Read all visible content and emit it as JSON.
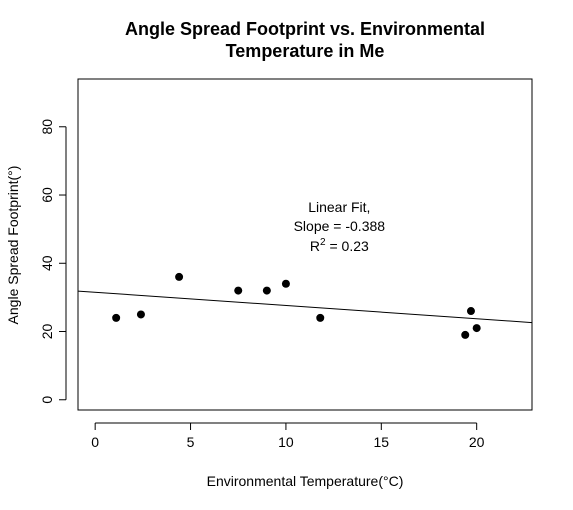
{
  "chart_data": {
    "type": "scatter",
    "title_lines": [
      "Angle Spread Footprint vs. Environmental",
      "Temperature in Me"
    ],
    "xlabel": "Environmental Temperature(°C)",
    "ylabel": "Angle Spread Footprint(°)",
    "xlim": [
      -0.9,
      22.9
    ],
    "ylim": [
      -3,
      94
    ],
    "x_ticks": [
      0,
      5,
      10,
      15,
      20
    ],
    "y_ticks": [
      0,
      20,
      40,
      60,
      80
    ],
    "x_tick_labels": [
      "0",
      "5",
      "10",
      "15",
      "20"
    ],
    "y_tick_labels": [
      "0",
      "20",
      "40",
      "60",
      "80"
    ],
    "points": [
      {
        "x": 1.1,
        "y": 24
      },
      {
        "x": 2.4,
        "y": 25
      },
      {
        "x": 4.4,
        "y": 36
      },
      {
        "x": 7.5,
        "y": 32
      },
      {
        "x": 9.0,
        "y": 32
      },
      {
        "x": 10.0,
        "y": 34
      },
      {
        "x": 11.8,
        "y": 24
      },
      {
        "x": 19.4,
        "y": 19
      },
      {
        "x": 19.7,
        "y": 26
      },
      {
        "x": 20.0,
        "y": 21
      }
    ],
    "fit_line": {
      "slope": -0.388,
      "intercept": 31.5
    },
    "annotation": {
      "line1": "Linear Fit,",
      "line2": "Slope =  -0.388",
      "r2_prefix": "R",
      "r2_sup": "2",
      "r2_value": " = 0.23",
      "x": 12.8,
      "y": 55
    },
    "grid": false,
    "marker_color": "#000000",
    "line_color": "#000000"
  }
}
